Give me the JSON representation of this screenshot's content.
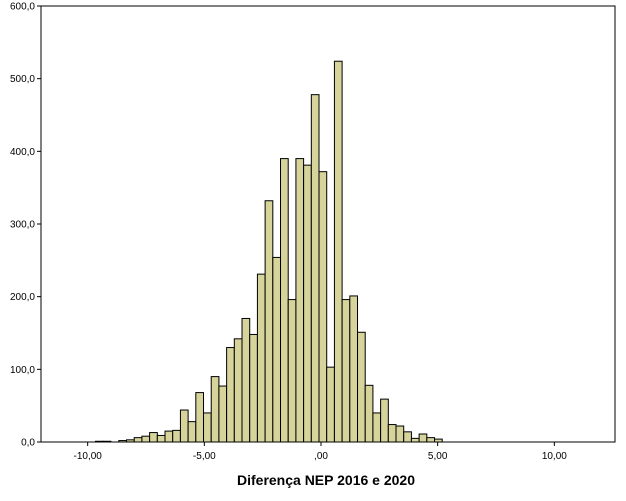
{
  "chart_data": {
    "type": "bar",
    "title": "",
    "xlabel": "Diferença NEP 2016 e 2020",
    "ylabel": "",
    "xlim": [
      -12,
      12.6
    ],
    "ylim": [
      0,
      600
    ],
    "grid": false,
    "bar_color": "#d6d39b",
    "edge_color": "#000000",
    "bin_width": 0.33,
    "x": [
      -9.5,
      -9.17,
      -8.5,
      -8.17,
      -7.84,
      -7.51,
      -7.18,
      -6.85,
      -6.52,
      -6.19,
      -5.86,
      -5.53,
      -5.2,
      -4.87,
      -4.54,
      -4.21,
      -3.88,
      -3.55,
      -3.22,
      -2.89,
      -2.56,
      -2.23,
      -1.9,
      -1.57,
      -1.24,
      -0.91,
      -0.58,
      -0.25,
      0.08,
      0.41,
      0.74,
      1.07,
      1.4,
      1.73,
      2.06,
      2.39,
      2.72,
      3.05,
      3.38,
      3.71,
      4.04,
      4.37,
      4.7,
      5.03
    ],
    "values": [
      1,
      1,
      2,
      3,
      6,
      8,
      13,
      9,
      15,
      16,
      44,
      28,
      68,
      40,
      90,
      77,
      130,
      142,
      170,
      148,
      231,
      332,
      254,
      390,
      196,
      390,
      381,
      478,
      372,
      103,
      524,
      196,
      201,
      151,
      78,
      40,
      59,
      24,
      22,
      14,
      5,
      11,
      6,
      4
    ],
    "x_ticks": [
      -10,
      -5,
      0,
      5,
      10
    ],
    "x_tick_labels": [
      "-10,00",
      "-5,00",
      ",00",
      "5,00",
      "10,00"
    ],
    "y_ticks": [
      0,
      100,
      200,
      300,
      400,
      500,
      600
    ],
    "y_tick_labels": [
      "0,0",
      "100,0",
      "200,0",
      "300,0",
      "400,0",
      "500,0",
      "600,0"
    ]
  }
}
